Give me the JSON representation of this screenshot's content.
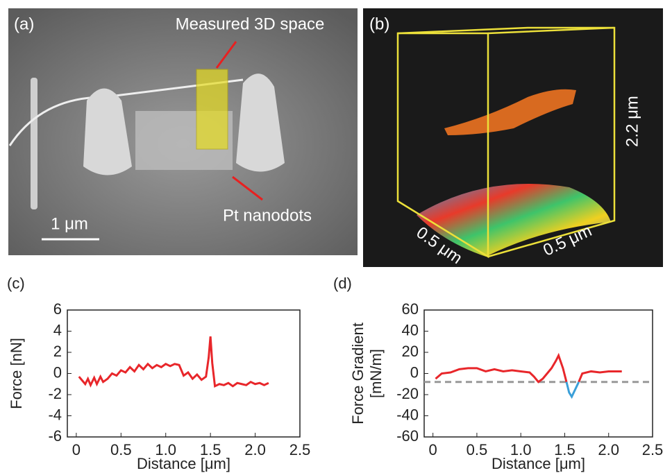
{
  "panels": {
    "a": {
      "label": "(a)",
      "annotations": [
        "Measured 3D space",
        "Pt nanodots"
      ],
      "scale_bar": "1 μm"
    },
    "b": {
      "label": "(b)",
      "dimensions": [
        "2.2 μm",
        "0.5 μm",
        "0.5 μm"
      ]
    }
  },
  "chart_data": [
    {
      "type": "line",
      "label": "(c)",
      "xlabel": "Distance [μm]",
      "ylabel": [
        "Force [nN]"
      ],
      "x": [
        0.03,
        0.06,
        0.1,
        0.13,
        0.16,
        0.2,
        0.23,
        0.27,
        0.3,
        0.35,
        0.4,
        0.45,
        0.5,
        0.55,
        0.6,
        0.65,
        0.7,
        0.75,
        0.8,
        0.85,
        0.9,
        0.95,
        1.0,
        1.05,
        1.1,
        1.15,
        1.2,
        1.25,
        1.3,
        1.35,
        1.4,
        1.45,
        1.48,
        1.5,
        1.52,
        1.55,
        1.6,
        1.65,
        1.7,
        1.75,
        1.8,
        1.85,
        1.9,
        1.95,
        2.0,
        2.05,
        2.1,
        2.15
      ],
      "series": [
        {
          "color": "#e8262a",
          "values": [
            -0.3,
            -0.6,
            -1.0,
            -0.5,
            -1.1,
            -0.4,
            -1.0,
            -0.3,
            -0.8,
            -0.5,
            0,
            -0.2,
            0.3,
            0.1,
            0.6,
            0.2,
            0.8,
            0.4,
            0.9,
            0.5,
            0.8,
            0.6,
            0.9,
            0.7,
            0.9,
            0.8,
            -0.2,
            0.1,
            -0.5,
            -0.1,
            -0.6,
            -0.3,
            1.5,
            3.5,
            1.0,
            -1.2,
            -1.0,
            -1.1,
            -0.9,
            -1.2,
            -0.9,
            -1.0,
            -1.1,
            -0.8,
            -1.0,
            -0.9,
            -1.1,
            -0.9
          ]
        }
      ],
      "xlim": [
        -0.1,
        2.5
      ],
      "ylim": [
        -6,
        6
      ],
      "xticks": [
        0,
        0.5,
        {
          "value": 1,
          "label": "1.0"
        },
        1.5,
        {
          "value": 2,
          "label": "2.0"
        },
        2.5
      ],
      "yticks": [
        -6,
        -4,
        -2,
        0,
        2,
        4,
        6
      ]
    },
    {
      "type": "line",
      "label": "(d)",
      "xlabel": "Distance [μm]",
      "ylabel": [
        "Force Gradient",
        "[mN/m]"
      ],
      "x": [
        0.03,
        0.1,
        0.2,
        0.3,
        0.4,
        0.5,
        0.6,
        0.7,
        0.8,
        0.9,
        1.0,
        1.1,
        1.15,
        1.2,
        1.25,
        1.3,
        1.35,
        1.4,
        1.43,
        1.48,
        1.52,
        1.55,
        1.58,
        1.62,
        1.66,
        1.7,
        1.8,
        1.9,
        2.0,
        2.1,
        2.15
      ],
      "series": [
        {
          "color": "#e8262a",
          "values": [
            -5,
            0,
            1,
            4,
            5,
            5,
            2,
            4,
            2,
            3,
            2,
            1,
            -3,
            -8,
            -5,
            0,
            5,
            12,
            17,
            5,
            -8,
            null,
            null,
            null,
            -8,
            0,
            2,
            1,
            2,
            2,
            2
          ]
        },
        {
          "color": "#3a9fd8",
          "values": [
            null,
            null,
            null,
            null,
            null,
            null,
            null,
            null,
            null,
            null,
            null,
            null,
            null,
            null,
            null,
            null,
            null,
            null,
            null,
            null,
            -8,
            -18,
            -22,
            -15,
            -8,
            null,
            null,
            null,
            null,
            null,
            null
          ]
        }
      ],
      "reference_line": -8,
      "reference_color": "#999999",
      "xlim": [
        -0.1,
        2.5
      ],
      "ylim": [
        -60,
        60
      ],
      "xticks": [
        0,
        0.5,
        {
          "value": 1,
          "label": "1.0"
        },
        1.5,
        {
          "value": 2,
          "label": "2.0"
        },
        2.5
      ],
      "yticks": [
        -60,
        -40,
        -20,
        0,
        20,
        40,
        60
      ]
    }
  ]
}
